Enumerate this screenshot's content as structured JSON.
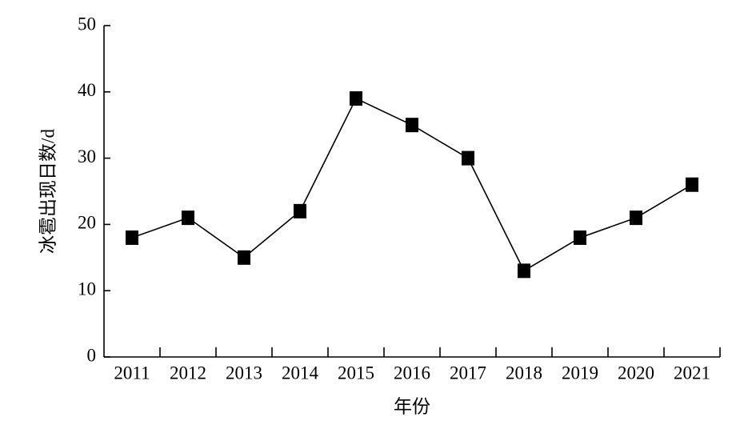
{
  "chart_data": {
    "type": "line",
    "x_label": "年份",
    "y_label": "冰雹出现日数/d",
    "categories": [
      "2011",
      "2012",
      "2013",
      "2014",
      "2015",
      "2016",
      "2017",
      "2018",
      "2019",
      "2020",
      "2021"
    ],
    "values": [
      18,
      21,
      15,
      22,
      39,
      35,
      30,
      13,
      18,
      21,
      26
    ],
    "color": "#000000",
    "ylim": [
      0,
      50
    ],
    "yticks": [
      0,
      10,
      20,
      30,
      40,
      50
    ]
  }
}
